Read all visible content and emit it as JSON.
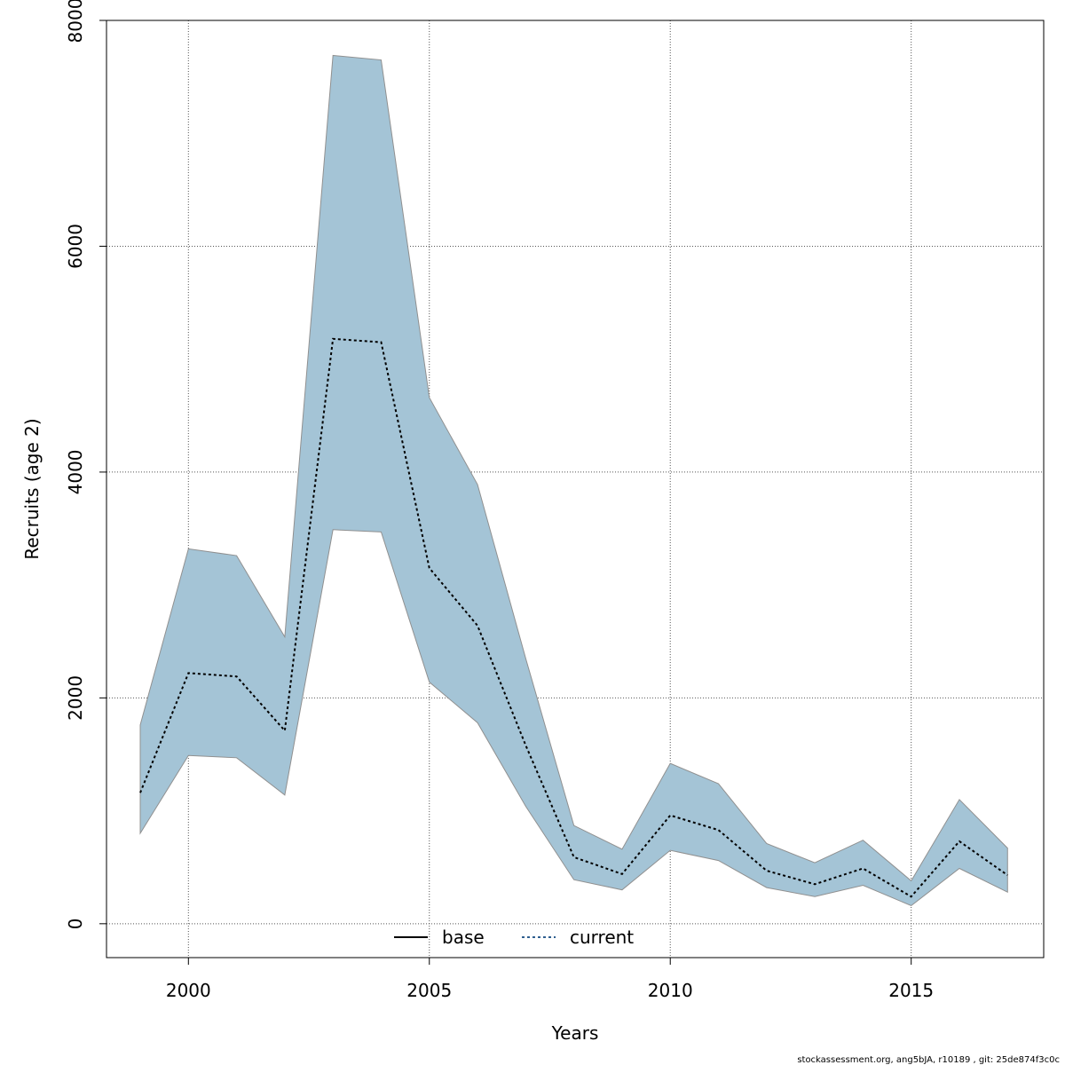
{
  "chart_data": {
    "type": "line",
    "xlabel": "Years",
    "ylabel": "Recruits (age 2)",
    "xlim": [
      1998.3,
      2017.75
    ],
    "ylim": [
      -300,
      8000
    ],
    "x_ticks": [
      2000,
      2005,
      2010,
      2015
    ],
    "y_ticks": [
      0,
      2000,
      4000,
      6000,
      8000
    ],
    "grid": true,
    "x": [
      1999,
      2000,
      2001,
      2002,
      2003,
      2004,
      2005,
      2006,
      2007,
      2008,
      2009,
      2010,
      2011,
      2012,
      2013,
      2014,
      2015,
      2016,
      2017
    ],
    "series": [
      {
        "name": "current",
        "line_style": "dotted",
        "color": "#000000",
        "values": [
          1160,
          2220,
          2190,
          1710,
          5180,
          5150,
          3150,
          2640,
          1580,
          590,
          440,
          960,
          830,
          470,
          350,
          490,
          240,
          730,
          430
        ]
      }
    ],
    "band": {
      "lower": [
        800,
        1490,
        1470,
        1140,
        3490,
        3470,
        2140,
        1780,
        1040,
        390,
        300,
        650,
        560,
        320,
        240,
        340,
        160,
        490,
        280
      ],
      "upper": [
        1760,
        3320,
        3260,
        2540,
        7690,
        7650,
        4660,
        3890,
        2350,
        870,
        660,
        1420,
        1240,
        710,
        540,
        740,
        380,
        1100,
        670
      ],
      "color": "#a4c4d6",
      "edge_color": "#909090"
    },
    "legend": {
      "placement": "bottom-center",
      "entries": [
        {
          "label": "base",
          "style": "solid",
          "color": "#000000"
        },
        {
          "label": "current",
          "style": "dotted",
          "color": "#2f5f8f"
        }
      ]
    }
  },
  "footer": "stockassessment.org, ang5bJA, r10189 , git: 25de874f3c0c"
}
